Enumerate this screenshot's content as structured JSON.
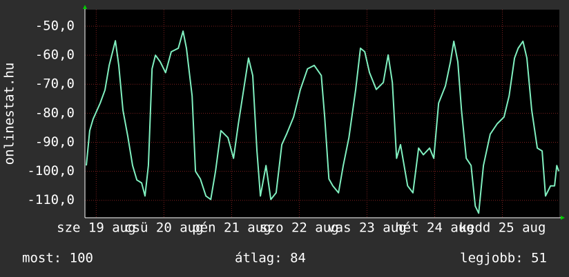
{
  "chart_data": {
    "type": "line",
    "y_label": "onlinestat.hu",
    "x": [
      0.5,
      1.7,
      2.9,
      5.4,
      7.1,
      8.6,
      10.8,
      12,
      13.5,
      15.2,
      16.9,
      18.4,
      20.1,
      21.3,
      22.5,
      23.8,
      25,
      26.7,
      28.6,
      30.6,
      33.1,
      34.8,
      36,
      38,
      39.2,
      40.9,
      42.9,
      44.6,
      46.3,
      48.2,
      50.7,
      52.7,
      54.4,
      56.1,
      58,
      59.5,
      61,
      62.2,
      64.2,
      65.9,
      67.8,
      69.8,
      71.5,
      74,
      76.4,
      78.9,
      81.3,
      83.8,
      85,
      86.5,
      87.9,
      89.9,
      91.6,
      93.6,
      96,
      97.7,
      99.2,
      100.9,
      103.3,
      105.8,
      107.5,
      109,
      110.5,
      111.9,
      114.4,
      116.3,
      118.3,
      120,
      122.2,
      123.7,
      125.4,
      127.8,
      129.6,
      130.8,
      132.2,
      133.5,
      135.2,
      136.9,
      138.4,
      139.6,
      141.3,
      143.7,
      146.2,
      148.6,
      150.4,
      152.3,
      153.6,
      155.3,
      156.7,
      158.4,
      160.4,
      162.1,
      163.3,
      165.1,
      166.5,
      167.3,
      168
    ],
    "series": [
      {
        "name": "onlinestat.hu",
        "color": "#80f0c0",
        "values": [
          -98,
          -86,
          -82,
          -76.5,
          -72,
          -63.5,
          -55,
          -63.5,
          -79,
          -88,
          -98,
          -103,
          -104,
          -108.5,
          -98,
          -64.7,
          -60,
          -62.3,
          -66,
          -58.8,
          -57.6,
          -51.7,
          -57.6,
          -74,
          -100,
          -102.6,
          -108.5,
          -109.7,
          -100,
          -86,
          -88.4,
          -95.5,
          -83.6,
          -73,
          -61,
          -67,
          -93,
          -108.5,
          -98,
          -109.7,
          -107.4,
          -90.8,
          -87.2,
          -81.3,
          -71.8,
          -64.7,
          -63.5,
          -67,
          -81.3,
          -102.6,
          -105,
          -107.4,
          -98,
          -88.4,
          -71.8,
          -57.6,
          -58.8,
          -66,
          -71.8,
          -69.4,
          -59.9,
          -69.4,
          -95.5,
          -90.8,
          -105,
          -107.4,
          -92,
          -94.3,
          -92,
          -95.5,
          -76.5,
          -70.6,
          -62.3,
          -55.2,
          -62.3,
          -78.9,
          -95.5,
          -98,
          -112,
          -114.4,
          -98,
          -87.2,
          -83.6,
          -81.3,
          -74,
          -61,
          -57.6,
          -55.2,
          -61,
          -78.9,
          -92,
          -93,
          -108.5,
          -105,
          -105,
          -98,
          -100
        ]
      }
    ],
    "xlim": [
      0,
      168.2
    ],
    "xticks": [
      {
        "value": 4,
        "label": "sze 19 aug"
      },
      {
        "value": 28,
        "label": "csü 20 aug"
      },
      {
        "value": 52,
        "label": "pén 21 aug"
      },
      {
        "value": 76,
        "label": "szo 22 aug"
      },
      {
        "value": 100,
        "label": "vas 23 aug"
      },
      {
        "value": 124,
        "label": "hét 24 aug"
      },
      {
        "value": 148,
        "label": "kedd 25 aug"
      }
    ],
    "ylim": [
      -116,
      -44.3
    ],
    "yticks": [
      {
        "value": -50,
        "label": "-50,0"
      },
      {
        "value": -60,
        "label": "-60,0"
      },
      {
        "value": -70,
        "label": "-70,0"
      },
      {
        "value": -80,
        "label": "-80,0"
      },
      {
        "value": -90,
        "label": "-90,0"
      },
      {
        "value": -100,
        "label": "-100,0"
      },
      {
        "value": -110,
        "label": "-110,0"
      }
    ],
    "grid": true,
    "stats": [
      "most: 100",
      "átlag: 84",
      "legjobb: 51"
    ]
  }
}
